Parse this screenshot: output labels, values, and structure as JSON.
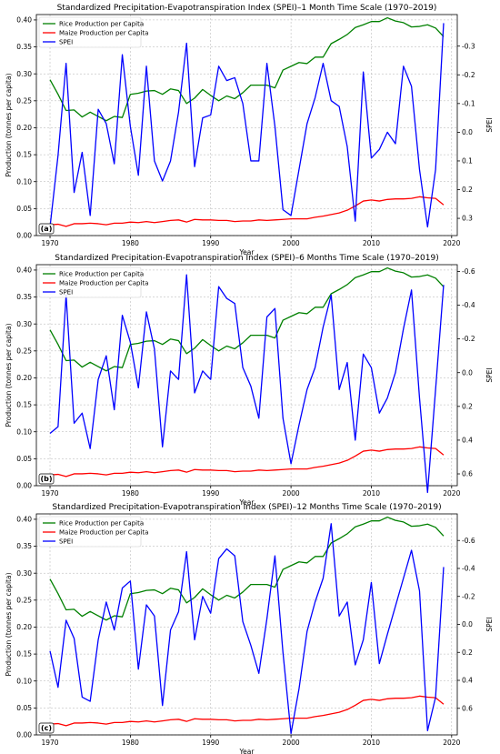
{
  "chart_data": [
    {
      "type": "line",
      "title": "Standardized Precipitation-Evapotranspiration Index (SPEI)–1 Month Time Scale (1970–2019)",
      "tag": "(a)",
      "xlabel": "Year",
      "ylabel": "Production (tonnes per capita)",
      "y2label": "SPEI",
      "xlim": [
        1968.3,
        2020.7
      ],
      "xticks": [
        1970,
        1980,
        1990,
        2000,
        2010,
        2020
      ],
      "ylim": [
        0.0,
        0.41
      ],
      "yticks": [
        0.0,
        0.05,
        0.1,
        0.15,
        0.2,
        0.25,
        0.3,
        0.35,
        0.4
      ],
      "ytick_labels": [
        "0.00",
        "0.05",
        "0.10",
        "0.15",
        "0.20",
        "0.25",
        "0.30",
        "0.35",
        "0.40"
      ],
      "y2lim": [
        0.36,
        -0.41
      ],
      "y2ticks": [
        -0.3,
        -0.2,
        -0.1,
        0.0,
        0.1,
        0.2,
        0.3
      ],
      "y2tick_labels": [
        "-0.3",
        "-0.2",
        "-0.1",
        "0.0",
        "0.1",
        "0.2",
        "0.3"
      ],
      "grid": true,
      "legend": "top-left",
      "x": [
        1970,
        1971,
        1972,
        1973,
        1974,
        1975,
        1976,
        1977,
        1978,
        1979,
        1980,
        1981,
        1982,
        1983,
        1984,
        1985,
        1986,
        1987,
        1988,
        1989,
        1990,
        1991,
        1992,
        1993,
        1994,
        1995,
        1996,
        1997,
        1998,
        1999,
        2000,
        2001,
        2002,
        2003,
        2004,
        2005,
        2006,
        2007,
        2008,
        2009,
        2010,
        2011,
        2012,
        2013,
        2014,
        2015,
        2016,
        2017,
        2018,
        2019
      ],
      "series": [
        {
          "name": "Rice Production per Capita",
          "color": "#008000",
          "axis": "left",
          "values": [
            0.289,
            0.262,
            0.232,
            0.233,
            0.22,
            0.229,
            0.221,
            0.213,
            0.221,
            0.219,
            0.262,
            0.264,
            0.268,
            0.269,
            0.262,
            0.272,
            0.269,
            0.245,
            0.255,
            0.271,
            0.26,
            0.25,
            0.259,
            0.254,
            0.265,
            0.279,
            0.279,
            0.279,
            0.274,
            0.307,
            0.314,
            0.321,
            0.319,
            0.331,
            0.331,
            0.356,
            0.364,
            0.373,
            0.386,
            0.391,
            0.397,
            0.397,
            0.404,
            0.398,
            0.395,
            0.387,
            0.388,
            0.391,
            0.385,
            0.369
          ]
        },
        {
          "name": "Maize Production per Capita",
          "color": "#ff0000",
          "axis": "left",
          "values": [
            0.02,
            0.021,
            0.017,
            0.022,
            0.022,
            0.023,
            0.022,
            0.02,
            0.023,
            0.023,
            0.025,
            0.024,
            0.026,
            0.024,
            0.026,
            0.028,
            0.029,
            0.025,
            0.03,
            0.029,
            0.029,
            0.028,
            0.028,
            0.026,
            0.027,
            0.027,
            0.029,
            0.028,
            0.029,
            0.03,
            0.031,
            0.031,
            0.031,
            0.034,
            0.036,
            0.039,
            0.042,
            0.047,
            0.055,
            0.064,
            0.066,
            0.064,
            0.067,
            0.068,
            0.068,
            0.069,
            0.072,
            0.07,
            0.069,
            0.057
          ]
        },
        {
          "name": "SPEI",
          "color": "#0000ff",
          "axis": "right",
          "values": [
            0.33,
            0.08,
            -0.24,
            0.21,
            0.07,
            0.29,
            -0.08,
            -0.03,
            0.11,
            -0.27,
            -0.02,
            0.15,
            -0.23,
            0.1,
            0.17,
            0.1,
            -0.07,
            -0.31,
            0.12,
            -0.05,
            -0.06,
            -0.23,
            -0.18,
            -0.19,
            -0.1,
            0.1,
            0.1,
            -0.24,
            -0.02,
            0.27,
            0.29,
            0.13,
            -0.03,
            -0.12,
            -0.24,
            -0.11,
            -0.09,
            0.05,
            0.31,
            -0.21,
            0.09,
            0.06,
            0.0,
            0.04,
            -0.23,
            -0.16,
            0.13,
            0.33,
            0.13,
            -0.38
          ]
        }
      ]
    },
    {
      "type": "line",
      "title": "Standardized Precipitation-Evapotranspiration Index (SPEI)–6 Months Time Scale (1970–2019)",
      "tag": "(b)",
      "xlabel": "Year",
      "ylabel": "Production (tonnes per capita)",
      "y2label": "SPEI",
      "xlim": [
        1968.3,
        2020.7
      ],
      "xticks": [
        1970,
        1980,
        1990,
        2000,
        2010,
        2020
      ],
      "ylim": [
        0.0,
        0.41
      ],
      "yticks": [
        0.0,
        0.05,
        0.1,
        0.15,
        0.2,
        0.25,
        0.3,
        0.35,
        0.4
      ],
      "ytick_labels": [
        "0.00",
        "0.05",
        "0.10",
        "0.15",
        "0.20",
        "0.25",
        "0.30",
        "0.35",
        "0.40"
      ],
      "y2lim": [
        0.67,
        -0.64
      ],
      "y2ticks": [
        -0.6,
        -0.4,
        -0.2,
        0.0,
        0.2,
        0.4,
        0.6
      ],
      "y2tick_labels": [
        "-0.6",
        "-0.4",
        "-0.2",
        "0.0",
        "0.2",
        "0.4",
        "0.6"
      ],
      "grid": true,
      "legend": "top-left",
      "x": [
        1970,
        1971,
        1972,
        1973,
        1974,
        1975,
        1976,
        1977,
        1978,
        1979,
        1980,
        1981,
        1982,
        1983,
        1984,
        1985,
        1986,
        1987,
        1988,
        1989,
        1990,
        1991,
        1992,
        1993,
        1994,
        1995,
        1996,
        1997,
        1998,
        1999,
        2000,
        2001,
        2002,
        2003,
        2004,
        2005,
        2006,
        2007,
        2008,
        2009,
        2010,
        2011,
        2012,
        2013,
        2014,
        2015,
        2016,
        2017,
        2018,
        2019
      ],
      "series": [
        {
          "name": "Rice Production per Capita",
          "color": "#008000",
          "axis": "left",
          "values": [
            0.289,
            0.262,
            0.232,
            0.233,
            0.22,
            0.229,
            0.221,
            0.213,
            0.221,
            0.219,
            0.262,
            0.264,
            0.268,
            0.269,
            0.262,
            0.272,
            0.269,
            0.245,
            0.255,
            0.271,
            0.26,
            0.25,
            0.259,
            0.254,
            0.265,
            0.279,
            0.279,
            0.279,
            0.274,
            0.307,
            0.314,
            0.321,
            0.319,
            0.331,
            0.331,
            0.356,
            0.364,
            0.373,
            0.386,
            0.391,
            0.397,
            0.397,
            0.404,
            0.398,
            0.395,
            0.387,
            0.388,
            0.391,
            0.385,
            0.369
          ]
        },
        {
          "name": "Maize Production per Capita",
          "color": "#ff0000",
          "axis": "left",
          "values": [
            0.02,
            0.021,
            0.017,
            0.022,
            0.022,
            0.023,
            0.022,
            0.02,
            0.023,
            0.023,
            0.025,
            0.024,
            0.026,
            0.024,
            0.026,
            0.028,
            0.029,
            0.025,
            0.03,
            0.029,
            0.029,
            0.028,
            0.028,
            0.026,
            0.027,
            0.027,
            0.029,
            0.028,
            0.029,
            0.03,
            0.031,
            0.031,
            0.031,
            0.034,
            0.036,
            0.039,
            0.042,
            0.047,
            0.055,
            0.064,
            0.066,
            0.064,
            0.067,
            0.068,
            0.068,
            0.069,
            0.072,
            0.07,
            0.069,
            0.057
          ]
        },
        {
          "name": "SPEI",
          "color": "#0000ff",
          "axis": "right",
          "values": [
            0.36,
            0.32,
            -0.46,
            0.3,
            0.24,
            0.45,
            0.04,
            -0.1,
            0.22,
            -0.34,
            -0.18,
            0.09,
            -0.36,
            -0.14,
            0.44,
            -0.01,
            0.04,
            -0.58,
            0.12,
            -0.01,
            0.04,
            -0.51,
            -0.44,
            -0.41,
            -0.03,
            0.08,
            0.27,
            -0.33,
            -0.38,
            0.27,
            0.54,
            0.31,
            0.1,
            -0.03,
            -0.27,
            -0.46,
            0.1,
            -0.06,
            0.4,
            -0.11,
            -0.03,
            0.24,
            0.15,
            0.0,
            -0.26,
            -0.49,
            0.15,
            0.71,
            0.1,
            -0.52
          ]
        }
      ]
    },
    {
      "type": "line",
      "title": "Standardized Precipitation-Evapotranspiration Index (SPEI)–12 Months Time Scale (1970–2019)",
      "tag": "(c)",
      "xlabel": "Year",
      "ylabel": "Production (tonnes per capita)",
      "y2label": "SPEI",
      "xlim": [
        1968.3,
        2020.7
      ],
      "xticks": [
        1970,
        1980,
        1990,
        2000,
        2010,
        2020
      ],
      "ylim": [
        0.0,
        0.41
      ],
      "yticks": [
        0.0,
        0.05,
        0.1,
        0.15,
        0.2,
        0.25,
        0.3,
        0.35,
        0.4
      ],
      "ytick_labels": [
        "0.00",
        "0.05",
        "0.10",
        "0.15",
        "0.20",
        "0.25",
        "0.30",
        "0.35",
        "0.40"
      ],
      "y2lim": [
        0.79,
        -0.79
      ],
      "y2ticks": [
        -0.6,
        -0.4,
        -0.2,
        0.0,
        0.2,
        0.4,
        0.6
      ],
      "y2tick_labels": [
        "-0.6",
        "-0.4",
        "-0.2",
        "0.0",
        "0.2",
        "0.4",
        "0.6"
      ],
      "grid": true,
      "legend": "top-left",
      "x": [
        1970,
        1971,
        1972,
        1973,
        1974,
        1975,
        1976,
        1977,
        1978,
        1979,
        1980,
        1981,
        1982,
        1983,
        1984,
        1985,
        1986,
        1987,
        1988,
        1989,
        1990,
        1991,
        1992,
        1993,
        1994,
        1995,
        1996,
        1997,
        1998,
        1999,
        2000,
        2001,
        2002,
        2003,
        2004,
        2005,
        2006,
        2007,
        2008,
        2009,
        2010,
        2011,
        2012,
        2013,
        2014,
        2015,
        2016,
        2017,
        2018,
        2019
      ],
      "series": [
        {
          "name": "Rice Production per Capita",
          "color": "#008000",
          "axis": "left",
          "values": [
            0.289,
            0.262,
            0.232,
            0.233,
            0.22,
            0.229,
            0.221,
            0.213,
            0.221,
            0.219,
            0.262,
            0.264,
            0.268,
            0.269,
            0.262,
            0.272,
            0.269,
            0.245,
            0.255,
            0.271,
            0.26,
            0.25,
            0.259,
            0.254,
            0.265,
            0.279,
            0.279,
            0.279,
            0.274,
            0.307,
            0.314,
            0.321,
            0.319,
            0.331,
            0.331,
            0.356,
            0.364,
            0.373,
            0.386,
            0.391,
            0.397,
            0.397,
            0.404,
            0.398,
            0.395,
            0.387,
            0.388,
            0.391,
            0.385,
            0.369
          ]
        },
        {
          "name": "Maize Production per Capita",
          "color": "#ff0000",
          "axis": "left",
          "values": [
            0.02,
            0.021,
            0.017,
            0.022,
            0.022,
            0.023,
            0.022,
            0.02,
            0.023,
            0.023,
            0.025,
            0.024,
            0.026,
            0.024,
            0.026,
            0.028,
            0.029,
            0.025,
            0.03,
            0.029,
            0.029,
            0.028,
            0.028,
            0.026,
            0.027,
            0.027,
            0.029,
            0.028,
            0.029,
            0.03,
            0.031,
            0.031,
            0.031,
            0.034,
            0.036,
            0.039,
            0.042,
            0.047,
            0.055,
            0.064,
            0.066,
            0.064,
            0.067,
            0.068,
            0.068,
            0.069,
            0.072,
            0.07,
            0.069,
            0.057
          ]
        },
        {
          "name": "SPEI",
          "color": "#0000ff",
          "axis": "right",
          "values": [
            0.19,
            0.45,
            -0.03,
            0.1,
            0.52,
            0.55,
            0.11,
            -0.16,
            0.04,
            -0.26,
            -0.31,
            0.32,
            -0.14,
            -0.06,
            0.58,
            0.04,
            -0.09,
            -0.52,
            0.11,
            -0.2,
            -0.08,
            -0.47,
            -0.54,
            -0.49,
            -0.02,
            0.15,
            0.35,
            -0.04,
            -0.49,
            0.2,
            0.78,
            0.46,
            0.05,
            -0.16,
            -0.33,
            -0.72,
            -0.06,
            -0.16,
            0.29,
            0.11,
            -0.3,
            0.28,
            0.07,
            -0.13,
            -0.33,
            -0.53,
            -0.24,
            0.76,
            0.52,
            -0.41
          ]
        }
      ]
    }
  ]
}
